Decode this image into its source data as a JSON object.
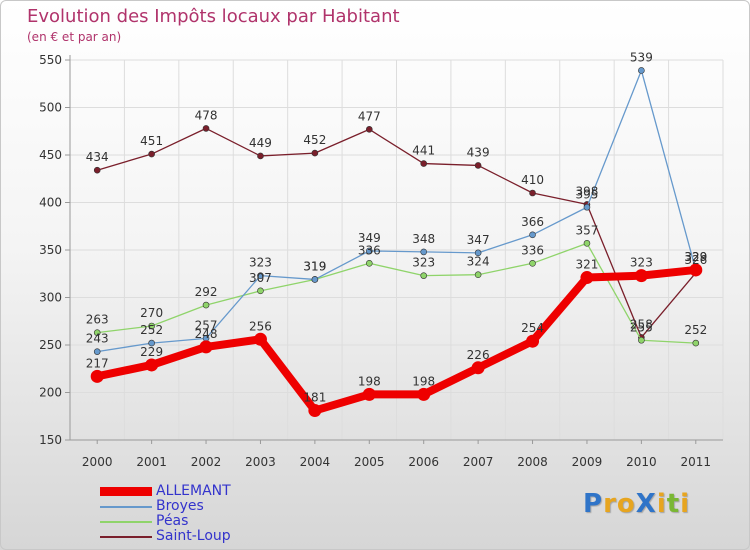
{
  "title": "Evolution des Impôts locaux par Habitant",
  "subtitle": "(en € et par an)",
  "logo": {
    "text": "ProXiti",
    "letters": [
      "P",
      "r",
      "o",
      "X",
      "i",
      "t",
      "i"
    ],
    "colors": [
      "#2f74c8",
      "#e7a51f",
      "#e7a51f",
      "#2f74c8",
      "#e7a51f",
      "#7ab733",
      "#e7a51f"
    ]
  },
  "chart_data": {
    "type": "line",
    "title": "Evolution des Impôts locaux par Habitant",
    "subtitle": "(en € et par an)",
    "xlabel": "",
    "ylabel": "",
    "ylim": [
      150,
      550
    ],
    "yticks": [
      150,
      200,
      250,
      300,
      350,
      400,
      450,
      500,
      550
    ],
    "x": [
      "2000",
      "2001",
      "2002",
      "2003",
      "2004",
      "2005",
      "2006",
      "2007",
      "2008",
      "2009",
      "2010",
      "2011"
    ],
    "legend_position": "bottom-left",
    "series": [
      {
        "name": "Saint-Loup",
        "color": "#7a1f2b",
        "values": [
          434,
          451,
          478,
          449,
          452,
          477,
          441,
          439,
          410,
          398,
          258,
          326
        ]
      },
      {
        "name": "Péas",
        "color": "#8fd46a",
        "values": [
          263,
          270,
          292,
          307,
          319,
          336,
          323,
          324,
          336,
          357,
          255,
          252
        ]
      },
      {
        "name": "Broyes",
        "color": "#6699cc",
        "values": [
          243,
          252,
          257,
          323,
          319,
          349,
          348,
          347,
          366,
          395,
          539,
          329
        ]
      },
      {
        "name": "ALLEMANT",
        "color": "#ee0000",
        "values": [
          217,
          229,
          248,
          256,
          181,
          198,
          198,
          226,
          254,
          321,
          323,
          329
        ]
      }
    ],
    "legend": [
      "ALLEMANT",
      "Broyes",
      "Péas",
      "Saint-Loup"
    ]
  }
}
